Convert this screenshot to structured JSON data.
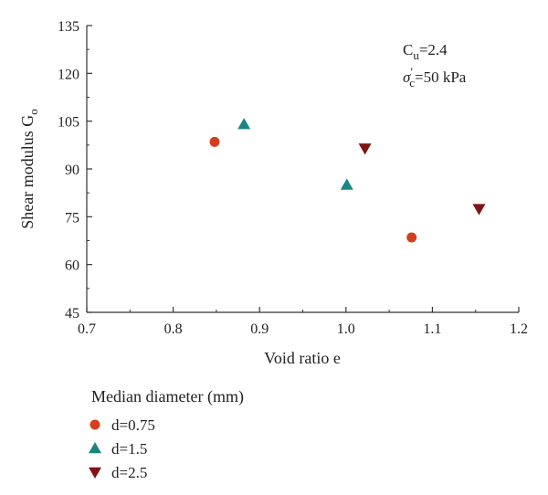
{
  "chart_data": {
    "type": "scatter",
    "xlabel": "Void ratio e",
    "ylabel_main": "Shear modulus G",
    "ylabel_sub": "o",
    "xlim": [
      0.7,
      1.2
    ],
    "ylim": [
      45,
      135
    ],
    "xticks": [
      "0.7",
      "0.8",
      "0.9",
      "1.0",
      "1.1",
      "1.2"
    ],
    "yticks": [
      "45",
      "60",
      "75",
      "90",
      "105",
      "120",
      "135"
    ],
    "grid": false,
    "annotation": {
      "cu_main": "C",
      "cu_sub": "u",
      "cu_value": "=2.4",
      "sigma_main": "σ",
      "sigma_sup": "′",
      "sigma_sub": "c",
      "sigma_value": "=50 kPa"
    },
    "legend": {
      "title": "Median diameter (mm)",
      "placement": "bottom-left"
    },
    "series": [
      {
        "name": "d=0.75",
        "marker": "circle",
        "color": "#d2401e",
        "points": [
          {
            "x": 0.848,
            "y": 98.5
          },
          {
            "x": 1.076,
            "y": 68.5
          }
        ]
      },
      {
        "name": "d=1.5",
        "marker": "triangle-up",
        "color": "#1a8585",
        "points": [
          {
            "x": 0.882,
            "y": 104.0
          },
          {
            "x": 1.001,
            "y": 85.0
          }
        ]
      },
      {
        "name": "d=2.5",
        "marker": "triangle-down",
        "color": "#7e1414",
        "points": [
          {
            "x": 1.022,
            "y": 96.5
          },
          {
            "x": 1.154,
            "y": 77.5
          }
        ]
      }
    ]
  }
}
